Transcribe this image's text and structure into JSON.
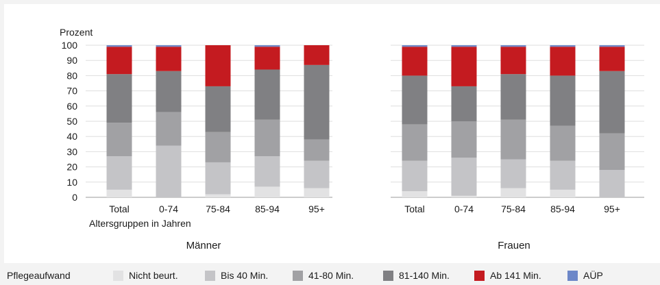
{
  "chart_data": {
    "type": "bar",
    "stacked": true,
    "ylabel": "Prozent",
    "xlabel": "Altersgruppen in Jahren",
    "ylim": [
      0,
      100
    ],
    "yticks": [
      0,
      10,
      20,
      30,
      40,
      50,
      60,
      70,
      80,
      90,
      100
    ],
    "grid": true,
    "legend_position": "bottom",
    "legend_title": "Pflegeaufwand",
    "categories": [
      "Total",
      "0-74",
      "75-84",
      "85-94",
      "95+"
    ],
    "segments": [
      {
        "name": "Nicht beurt.",
        "color": "#e2e2e3"
      },
      {
        "name": "Bis 40 Min.",
        "color": "#c4c4c7"
      },
      {
        "name": "41-80 Min.",
        "color": "#a1a1a4"
      },
      {
        "name": "81-140 Min.",
        "color": "#808083"
      },
      {
        "name": "Ab 141 Min.",
        "color": "#c41b20"
      },
      {
        "name": "AÜP",
        "color": "#6d87c8"
      }
    ],
    "panels": [
      {
        "title": "Männer",
        "series": [
          {
            "name": "Nicht beurt.",
            "values": [
              5,
              0,
              2,
              7,
              6
            ]
          },
          {
            "name": "Bis 40 Min.",
            "values": [
              22,
              34,
              21,
              20,
              18
            ]
          },
          {
            "name": "41-80 Min.",
            "values": [
              22,
              22,
              20,
              24,
              14
            ]
          },
          {
            "name": "81-140 Min.",
            "values": [
              32,
              27,
              30,
              33,
              49
            ]
          },
          {
            "name": "Ab 141 Min.",
            "values": [
              18,
              16,
              27,
              15,
              13
            ]
          },
          {
            "name": "AÜP",
            "values": [
              1,
              1,
              0,
              1,
              0
            ]
          }
        ]
      },
      {
        "title": "Frauen",
        "series": [
          {
            "name": "Nicht beurt.",
            "values": [
              4,
              1,
              6,
              5,
              0
            ]
          },
          {
            "name": "Bis 40 Min.",
            "values": [
              20,
              25,
              19,
              19,
              18
            ]
          },
          {
            "name": "41-80 Min.",
            "values": [
              24,
              24,
              26,
              23,
              24
            ]
          },
          {
            "name": "81-140 Min.",
            "values": [
              32,
              23,
              30,
              33,
              41
            ]
          },
          {
            "name": "Ab 141 Min.",
            "values": [
              19,
              26,
              18,
              19,
              16
            ]
          },
          {
            "name": "AÜP",
            "values": [
              1,
              1,
              1,
              1,
              1
            ]
          }
        ]
      }
    ]
  }
}
